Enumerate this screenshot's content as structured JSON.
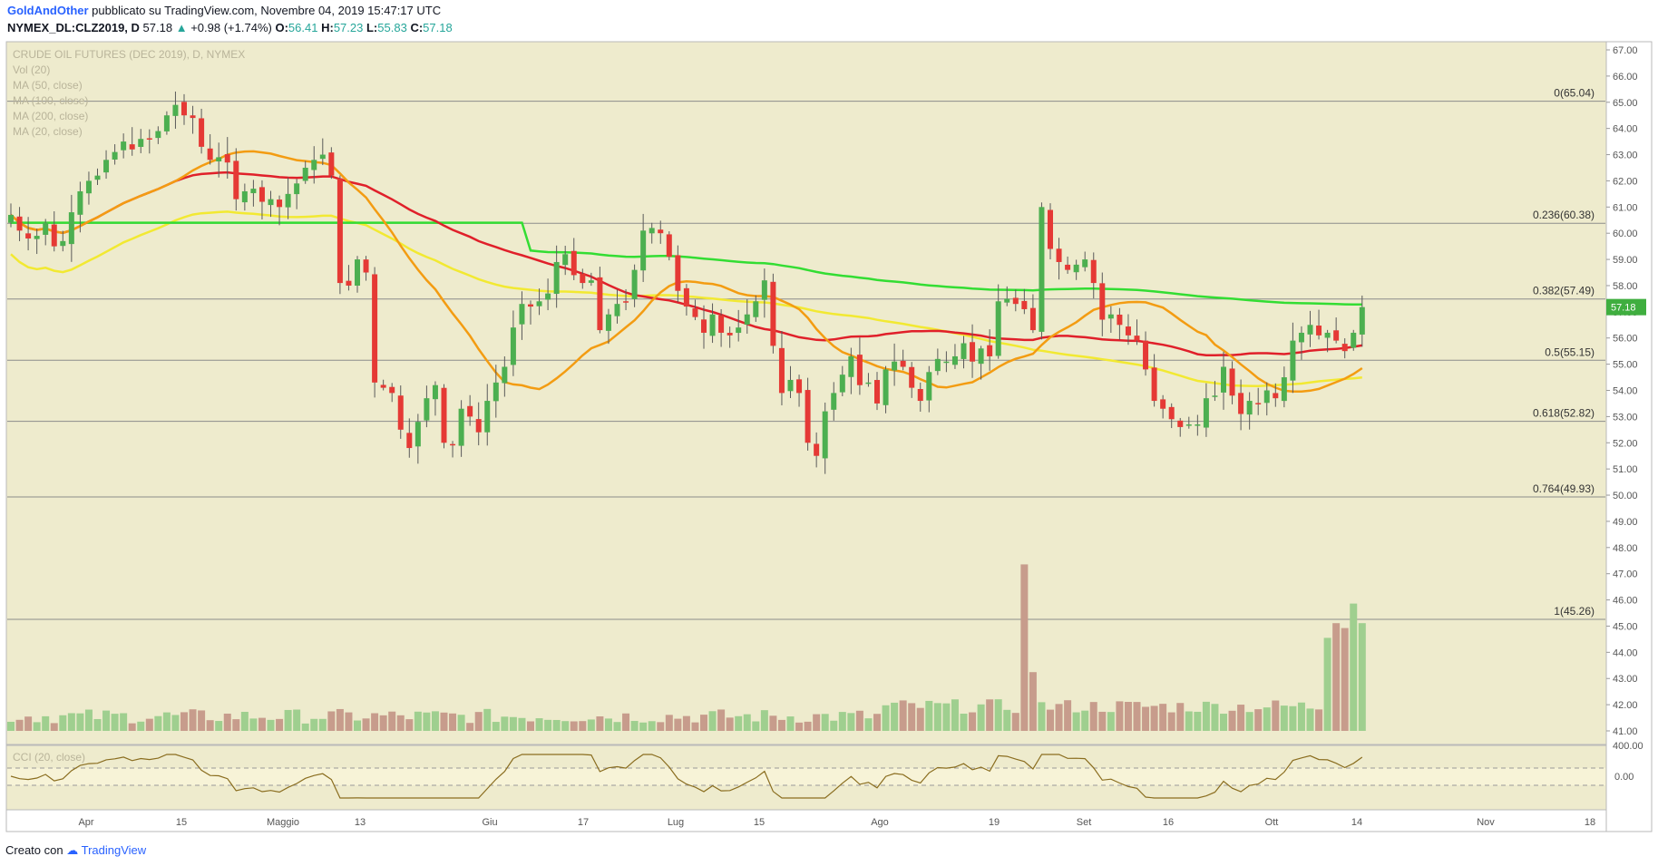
{
  "header": {
    "author": "GoldAndOther",
    "published": "pubblicato su TradingView.com, Novembre 04, 2019 15:47:17 UTC",
    "symbol_line": "NYMEX_DL:CLZ2019, D",
    "last": "57.18",
    "change": "+0.98 (+1.74%)",
    "open_label": "O:",
    "open": "56.41",
    "high_label": "H:",
    "high": "57.23",
    "low_label": "L:",
    "low": "55.83",
    "close_label": "C:",
    "close": "57.18"
  },
  "legend": {
    "title": "CRUDE OIL FUTURES (DEC 2019), D, NYMEX",
    "items": [
      "Vol (20)",
      "MA (50, close)",
      "MA (100, close)",
      "MA (200, close)",
      "MA (20, close)"
    ]
  },
  "cci_label": "CCI (20, close)",
  "footer": {
    "prefix": "Creato con",
    "brand": "TradingView"
  },
  "colors": {
    "up": "#4caf50",
    "down": "#e53935",
    "vol_up": "#9fcf8f",
    "vol_down": "#c79c8c",
    "ma20": "#f39c12",
    "ma50": "#e0202a",
    "ma100": "#f2e932",
    "ma200": "#33dd33",
    "panel_bg": "#eeebcd",
    "band_bg": "#f7f3d7",
    "cci_line": "#8a6d1f",
    "price_tag": "#3fae3f"
  },
  "chart_data": {
    "type": "candlestick",
    "title": "CRUDE OIL FUTURES (DEC 2019), D, NYMEX",
    "y_ticks": [
      "67.00",
      "66.00",
      "65.00",
      "64.00",
      "63.00",
      "62.00",
      "61.00",
      "60.00",
      "59.00",
      "58.00",
      "57.00",
      "56.00",
      "55.00",
      "54.00",
      "53.00",
      "52.00",
      "51.00",
      "50.00",
      "49.00",
      "48.00",
      "47.00",
      "46.00",
      "45.00",
      "44.00",
      "43.00",
      "42.00",
      "41.00"
    ],
    "ylim": [
      40.5,
      67.5
    ],
    "x_ticks": [
      "Apr",
      "15",
      "Maggio",
      "13",
      "Giu",
      "17",
      "Lug",
      "15",
      "Ago",
      "19",
      "Set",
      "16",
      "Ott",
      "14",
      "Nov",
      "18"
    ],
    "fib_levels": [
      {
        "label": "0(65.04)",
        "value": 65.04
      },
      {
        "label": "0.236(60.38)",
        "value": 60.38
      },
      {
        "label": "0.382(57.49)",
        "value": 57.49
      },
      {
        "label": "0.5(55.15)",
        "value": 55.15
      },
      {
        "label": "0.618(52.82)",
        "value": 52.82
      },
      {
        "label": "0.764(49.93)",
        "value": 49.93
      },
      {
        "label": "1(45.26)",
        "value": 45.26
      }
    ],
    "last_price_tag": "57.18",
    "vol_axis_label": "400.00",
    "cci_axis_label": "0.00",
    "candles_close": [
      60.7,
      60.1,
      59.8,
      59.9,
      60.4,
      59.5,
      59.7,
      60.8,
      61.6,
      62.0,
      62.2,
      62.8,
      63.1,
      63.5,
      63.2,
      63.6,
      63.6,
      63.9,
      64.5,
      64.9,
      64.5,
      64.4,
      63.3,
      62.8,
      62.9,
      62.7,
      61.3,
      61.6,
      61.7,
      61.2,
      61.3,
      61.0,
      61.5,
      61.9,
      62.5,
      62.8,
      63.0,
      62.2,
      58.1,
      58.0,
      59.0,
      58.5,
      54.3,
      54.1,
      53.9,
      52.5,
      51.8,
      52.8,
      53.7,
      54.2,
      52.0,
      51.9,
      53.3,
      53.0,
      52.4,
      53.6,
      54.3,
      54.9,
      56.4,
      57.3,
      57.2,
      57.4,
      57.7,
      58.9,
      59.2,
      58.4,
      58.1,
      58.2,
      56.3,
      56.9,
      57.3,
      57.4,
      58.6,
      60.1,
      60.2,
      60.0,
      59.1,
      57.8,
      57.2,
      56.8,
      56.2,
      56.9,
      56.2,
      56.1,
      56.4,
      56.9,
      57.4,
      58.2,
      55.7,
      53.9,
      54.4,
      53.9,
      52.0,
      51.5,
      53.2,
      53.9,
      54.6,
      55.3,
      54.2,
      54.3,
      53.5,
      54.8,
      55.1,
      54.9,
      54.1,
      53.6,
      54.7,
      55.2,
      55.1,
      55.3,
      55.8,
      55.1,
      55.6,
      55.3,
      57.4,
      57.5,
      57.3,
      57.1,
      56.3,
      61.0,
      59.4,
      58.9,
      58.6,
      58.8,
      59.0,
      58.1,
      56.7,
      56.9,
      56.5,
      56.1,
      55.9,
      54.8,
      53.6,
      53.3,
      52.9,
      52.6,
      52.7,
      52.7,
      53.7,
      53.8,
      54.9,
      53.8,
      53.1,
      53.6,
      53.5,
      54.0,
      53.7,
      54.5,
      55.9,
      56.2,
      56.5,
      56.1,
      56.2,
      55.9,
      55.5,
      56.2,
      57.18
    ]
  }
}
